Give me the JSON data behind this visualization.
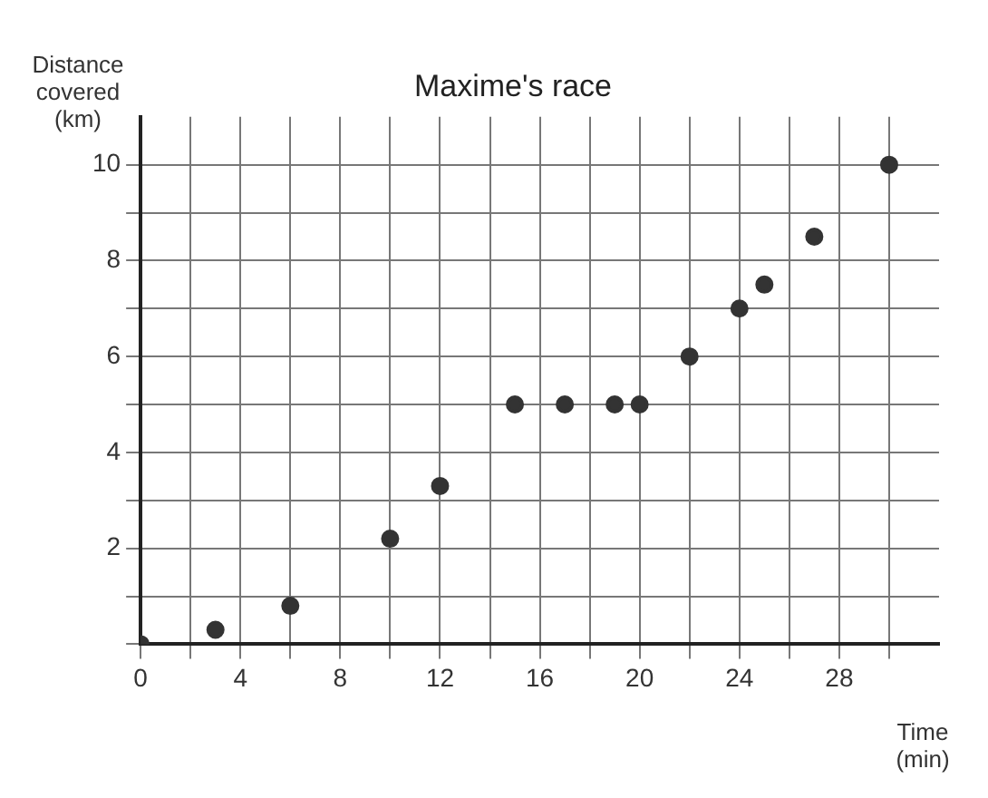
{
  "chart_data": {
    "type": "scatter",
    "title": "Maxime's race",
    "xlabel": "Time (min)",
    "ylabel": "Distance covered (km)",
    "x": [
      0,
      3,
      6,
      10,
      12,
      15,
      17,
      19,
      20,
      22,
      24,
      25,
      27,
      30
    ],
    "series": [
      {
        "color": "#333333",
        "values": [
          0,
          0.3,
          0.8,
          2.2,
          3.3,
          5,
          5,
          5,
          5,
          6,
          7,
          7.5,
          8.5,
          10
        ]
      }
    ],
    "xlim": [
      0,
      32
    ],
    "ylim": [
      0,
      11
    ],
    "xticks": [
      0,
      {
        "value": 2,
        "label": null
      },
      4,
      {
        "value": 6,
        "label": null
      },
      8,
      {
        "value": 10,
        "label": null
      },
      12,
      {
        "value": 14,
        "label": null
      },
      16,
      {
        "value": 18,
        "label": null
      },
      20,
      {
        "value": 22,
        "label": null
      },
      24,
      {
        "value": 26,
        "label": null
      },
      28,
      {
        "value": 30,
        "label": null
      }
    ],
    "yticks": [
      {
        "value": 0,
        "label": null
      },
      {
        "value": 1,
        "label": null
      },
      2,
      {
        "value": 3,
        "label": null
      },
      4,
      {
        "value": 5,
        "label": null
      },
      6,
      {
        "value": 7,
        "label": null
      },
      8,
      {
        "value": 9,
        "label": null
      },
      10
    ],
    "grid": true,
    "legend": false,
    "marker": "circle"
  }
}
